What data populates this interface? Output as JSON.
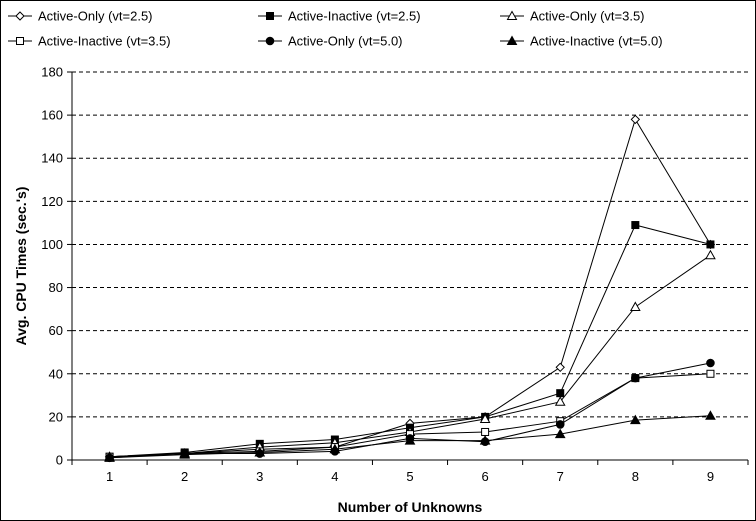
{
  "chart_data": {
    "type": "line",
    "title": "",
    "xlabel": "Number of Unknowns",
    "ylabel": "Avg. CPU Times (sec.'s)",
    "x": [
      1,
      2,
      3,
      4,
      5,
      6,
      7,
      8,
      9
    ],
    "ylim": [
      0,
      180
    ],
    "yticks": [
      0,
      20,
      40,
      60,
      80,
      100,
      120,
      140,
      160,
      180
    ],
    "xtick_labels": [
      "1",
      "2",
      "3",
      "4",
      "5",
      "6",
      "7",
      "8",
      "9"
    ],
    "ytick_labels": [
      "0",
      "20",
      "40",
      "60",
      "80",
      "100",
      "120",
      "140",
      "160",
      "180"
    ],
    "grid": "horizontal dashed",
    "legend_position": "top",
    "series": [
      {
        "name": "Active-Only (vt=2.5)",
        "marker": "diamond-open",
        "values": [
          1.5,
          3,
          5,
          6,
          17,
          20,
          43,
          158,
          100
        ]
      },
      {
        "name": "Active-Inactive (vt=2.5)",
        "marker": "square-filled",
        "values": [
          1.5,
          3.5,
          7.5,
          9.5,
          15,
          20,
          31,
          109,
          100
        ]
      },
      {
        "name": "Active-Only (vt=3.5)",
        "marker": "triangle-open",
        "values": [
          1.5,
          3,
          6,
          8,
          13,
          19,
          27,
          71,
          95
        ]
      },
      {
        "name": "Active-Inactive (vt=3.5)",
        "marker": "square-open",
        "values": [
          1.5,
          3,
          4,
          6,
          12,
          13,
          18,
          38,
          40
        ]
      },
      {
        "name": "Active-Only (vt=5.0)",
        "marker": "circle-filled",
        "values": [
          1,
          3,
          3,
          4,
          10,
          8.5,
          16.5,
          38,
          45
        ]
      },
      {
        "name": "Active-Inactive (vt=5.0)",
        "marker": "triangle-filled",
        "values": [
          1,
          2.5,
          3.5,
          5,
          9,
          9,
          12,
          18.5,
          20.5
        ]
      }
    ]
  }
}
